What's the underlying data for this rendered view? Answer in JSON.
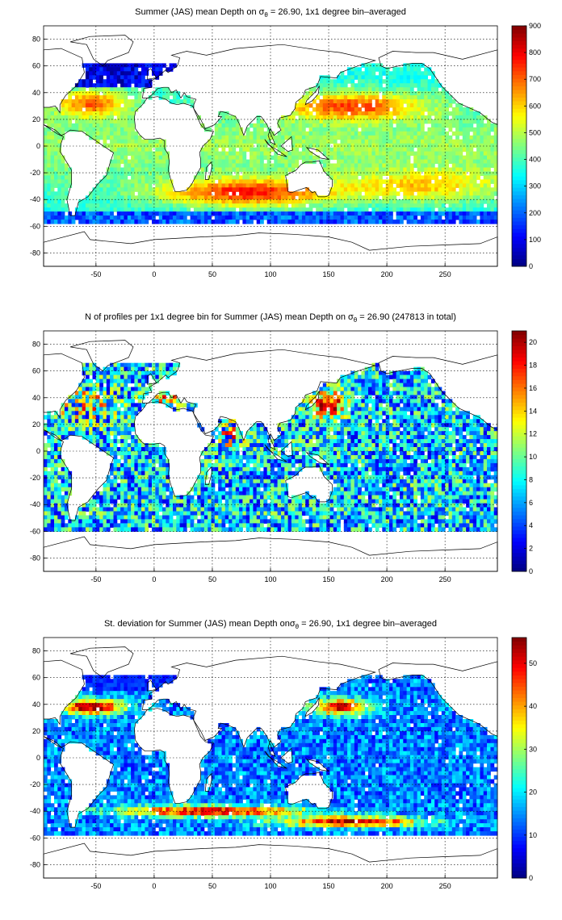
{
  "chart_data": [
    {
      "type": "heatmap",
      "title": "Summer (JAS) mean Depth on σθ = 26.90, 1x1 degree bin–averaged",
      "title_parts": [
        "Summer (JAS) mean Depth on ",
        "σ",
        "θ",
        " = 26.90, 1x1 degree bin–averaged"
      ],
      "xlim": [
        -95,
        295
      ],
      "ylim": [
        -90,
        90
      ],
      "x_ticks": [
        -50,
        0,
        50,
        100,
        150,
        200,
        250
      ],
      "y_ticks": [
        80,
        60,
        40,
        20,
        0,
        -20,
        -40,
        -60,
        -80
      ],
      "grid": true,
      "colormap": "jet",
      "colorbar": {
        "min": 0,
        "max": 900,
        "ticks": [
          900,
          800,
          700,
          600,
          500,
          400,
          300,
          200,
          100,
          0
        ]
      },
      "field": "depth",
      "mask_lat": [
        -58,
        62
      ]
    },
    {
      "type": "heatmap",
      "title": "N of profiles per 1x1 degree bin for Summer (JAS) mean Depth on σθ = 26.90 (247813 in total)",
      "title_parts": [
        "N of profiles per 1x1 degree bin for Summer (JAS) mean Depth on ",
        "σ",
        "θ",
        " = 26.90 (247813 in total)"
      ],
      "xlim": [
        -95,
        295
      ],
      "ylim": [
        -90,
        90
      ],
      "x_ticks": [
        -50,
        0,
        50,
        100,
        150,
        200,
        250
      ],
      "y_ticks": [
        80,
        60,
        40,
        20,
        0,
        -20,
        -40,
        -60,
        -80
      ],
      "grid": true,
      "colormap": "jet",
      "colorbar": {
        "min": 0,
        "max": 21,
        "ticks": [
          20,
          18,
          16,
          14,
          12,
          10,
          8,
          6,
          4,
          2,
          0
        ]
      },
      "field": "count",
      "mask_lat": [
        -58,
        66
      ]
    },
    {
      "type": "heatmap",
      "title": "St. deviation for Summer (JAS) mean Depth onσθ = 26.90, 1x1 degree bin–averaged",
      "title_parts": [
        "St. deviation for Summer (JAS) mean Depth on",
        "σ",
        "θ",
        " = 26.90, 1x1 degree bin–averaged"
      ],
      "xlim": [
        -95,
        295
      ],
      "ylim": [
        -90,
        90
      ],
      "x_ticks": [
        -50,
        0,
        50,
        100,
        150,
        200,
        250
      ],
      "y_ticks": [
        80,
        60,
        40,
        20,
        0,
        -20,
        -40,
        -60,
        -80
      ],
      "grid": true,
      "colormap": "jet",
      "colorbar": {
        "min": 0,
        "max": 56,
        "ticks": [
          50,
          40,
          30,
          20,
          10,
          0
        ]
      },
      "field": "std",
      "mask_lat": [
        -58,
        62
      ]
    }
  ]
}
